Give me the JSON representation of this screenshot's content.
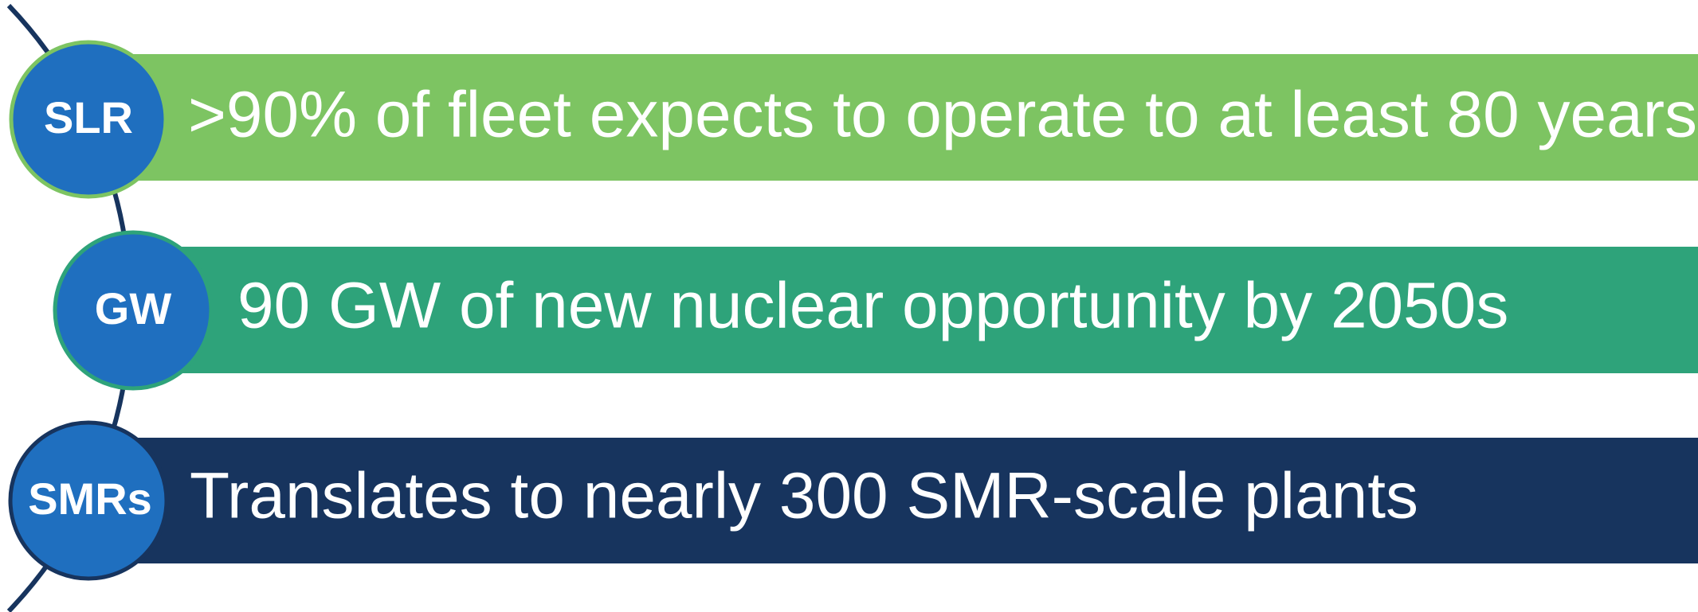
{
  "items": [
    {
      "abbr": "SLR",
      "text": ">90% of fleet expects to operate to at least 80 years"
    },
    {
      "abbr": "GW",
      "text": "90 GW of new nuclear opportunity by 2050s"
    },
    {
      "abbr": "SMRs",
      "text": "Translates to nearly 300 SMR-scale plants"
    }
  ]
}
